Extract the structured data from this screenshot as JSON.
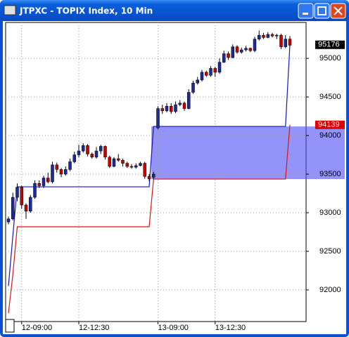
{
  "chart_data": {
    "type": "candlestick",
    "title": "JTPXC - TOPIX Index, 10 Min",
    "categories": [
      null,
      null,
      null,
      "12-09:00",
      null,
      null,
      null,
      null,
      null,
      null,
      null,
      null,
      null,
      null,
      null,
      null,
      "12-12:30",
      null,
      null,
      null,
      null,
      null,
      null,
      null,
      null,
      null,
      null,
      null,
      null,
      null,
      null,
      null,
      null,
      null,
      "13-09:00",
      null,
      null,
      null,
      null,
      null,
      null,
      null,
      null,
      null,
      null,
      null,
      null,
      "13-12:30",
      null,
      null,
      null,
      null,
      null,
      null,
      null,
      null,
      null,
      null,
      null,
      null,
      null,
      null,
      null,
      null,
      null
    ],
    "open": [
      92880,
      92920,
      93200,
      93330,
      93100,
      93020,
      93200,
      93380,
      93350,
      93450,
      93400,
      93620,
      93560,
      93500,
      93560,
      93660,
      93750,
      93800,
      93870,
      93760,
      93720,
      93800,
      93860,
      93720,
      93600,
      93700,
      93680,
      93640,
      93600,
      93590,
      93610,
      93640,
      93470,
      93460,
      94100,
      94350,
      94320,
      94380,
      94310,
      94400,
      94420,
      94350,
      94560,
      94680,
      94720,
      94820,
      94780,
      94870,
      94820,
      94950,
      95060,
      95010,
      95150,
      95080,
      95110,
      95130,
      95100,
      95250,
      95300,
      95270,
      95310,
      95290,
      95300,
      95150,
      95250
    ],
    "high": [
      92950,
      93260,
      93380,
      93350,
      93120,
      93230,
      93420,
      93420,
      93480,
      93520,
      93660,
      93650,
      93580,
      93600,
      93700,
      93790,
      93880,
      93900,
      93890,
      93780,
      93850,
      93880,
      93870,
      93740,
      93720,
      93760,
      93700,
      93660,
      93630,
      93640,
      93660,
      93660,
      93500,
      93530,
      94380,
      94400,
      94420,
      94420,
      94440,
      94460,
      94440,
      94600,
      94710,
      94760,
      94850,
      94840,
      94900,
      94890,
      95000,
      95100,
      95090,
      95180,
      95170,
      95140,
      95160,
      95140,
      95280,
      95360,
      95330,
      95340,
      95330,
      95320,
      95320,
      95300,
      95290
    ],
    "low": [
      92850,
      92900,
      93150,
      93050,
      92920,
      93000,
      93180,
      93320,
      93320,
      93380,
      93380,
      93520,
      93460,
      93480,
      93540,
      93640,
      93720,
      93780,
      93730,
      93700,
      93700,
      93760,
      93690,
      93580,
      93590,
      93660,
      93600,
      93580,
      93570,
      93570,
      93600,
      93440,
      93410,
      93430,
      94080,
      94280,
      94300,
      94280,
      94290,
      94380,
      94320,
      94340,
      94540,
      94660,
      94700,
      94760,
      94760,
      94760,
      94800,
      94940,
      94980,
      95000,
      95060,
      95060,
      95090,
      95080,
      95080,
      95230,
      95250,
      95260,
      95270,
      95250,
      95120,
      95130,
      95150
    ],
    "close": [
      92920,
      93200,
      93330,
      93100,
      93020,
      93200,
      93380,
      93350,
      93450,
      93400,
      93620,
      93560,
      93500,
      93560,
      93660,
      93750,
      93800,
      93870,
      93760,
      93720,
      93800,
      93860,
      93720,
      93600,
      93700,
      93680,
      93640,
      93600,
      93590,
      93610,
      93640,
      93470,
      93440,
      93500,
      94350,
      94320,
      94380,
      94310,
      94400,
      94420,
      94350,
      94560,
      94680,
      94720,
      94820,
      94780,
      94870,
      94820,
      94950,
      95060,
      95010,
      95150,
      95080,
      95110,
      95130,
      95100,
      95250,
      95300,
      95270,
      95310,
      95290,
      95300,
      95150,
      95250,
      95170
    ],
    "up_color": "#1c2a9c",
    "down_color": "#c80000",
    "series": [
      {
        "color": "#1414c8",
        "values": [
          92050,
          92700,
          93336,
          93336,
          93336,
          93336,
          93336,
          93336,
          93336,
          93336,
          93336,
          93336,
          93336,
          93336,
          93336,
          93336,
          93336,
          93336,
          93336,
          93336,
          93336,
          93336,
          93336,
          93336,
          93336,
          93336,
          93336,
          93336,
          93336,
          93336,
          93336,
          93336,
          93336,
          94118,
          94118,
          94118,
          94118,
          94118,
          94118,
          94118,
          94118,
          94118,
          94118,
          94118,
          94118,
          94118,
          94118,
          94118,
          94118,
          94118,
          94118,
          94118,
          94118,
          94118,
          94118,
          94118,
          94118,
          94118,
          94118,
          94118,
          94118,
          94118,
          94118,
          94118,
          95176
        ],
        "label_color": "#000000"
      },
      {
        "color": "#dc1414",
        "values": [
          91700,
          92200,
          92818,
          92818,
          92818,
          92818,
          92818,
          92818,
          92818,
          92818,
          92818,
          92818,
          92818,
          92818,
          92818,
          92818,
          92818,
          92818,
          92818,
          92818,
          92818,
          92818,
          92818,
          92818,
          92818,
          92818,
          92818,
          92818,
          92818,
          92818,
          92818,
          92818,
          92818,
          93436,
          93436,
          93436,
          93436,
          93436,
          93436,
          93436,
          93436,
          93436,
          93436,
          93436,
          93436,
          93436,
          93436,
          93436,
          93436,
          93436,
          93436,
          93436,
          93436,
          93436,
          93436,
          93436,
          93436,
          93436,
          93436,
          93436,
          93436,
          93436,
          93436,
          93436,
          94139
        ],
        "label_color": "#dc0000"
      }
    ],
    "shade": {
      "from": 93436,
      "to": 94118,
      "color": "rgba(80,80,245,0.62)"
    },
    "ylim": [
      91590,
      95465
    ],
    "yticks": [
      92000,
      92500,
      93000,
      93500,
      94000,
      94500,
      95000
    ],
    "grid": true
  }
}
